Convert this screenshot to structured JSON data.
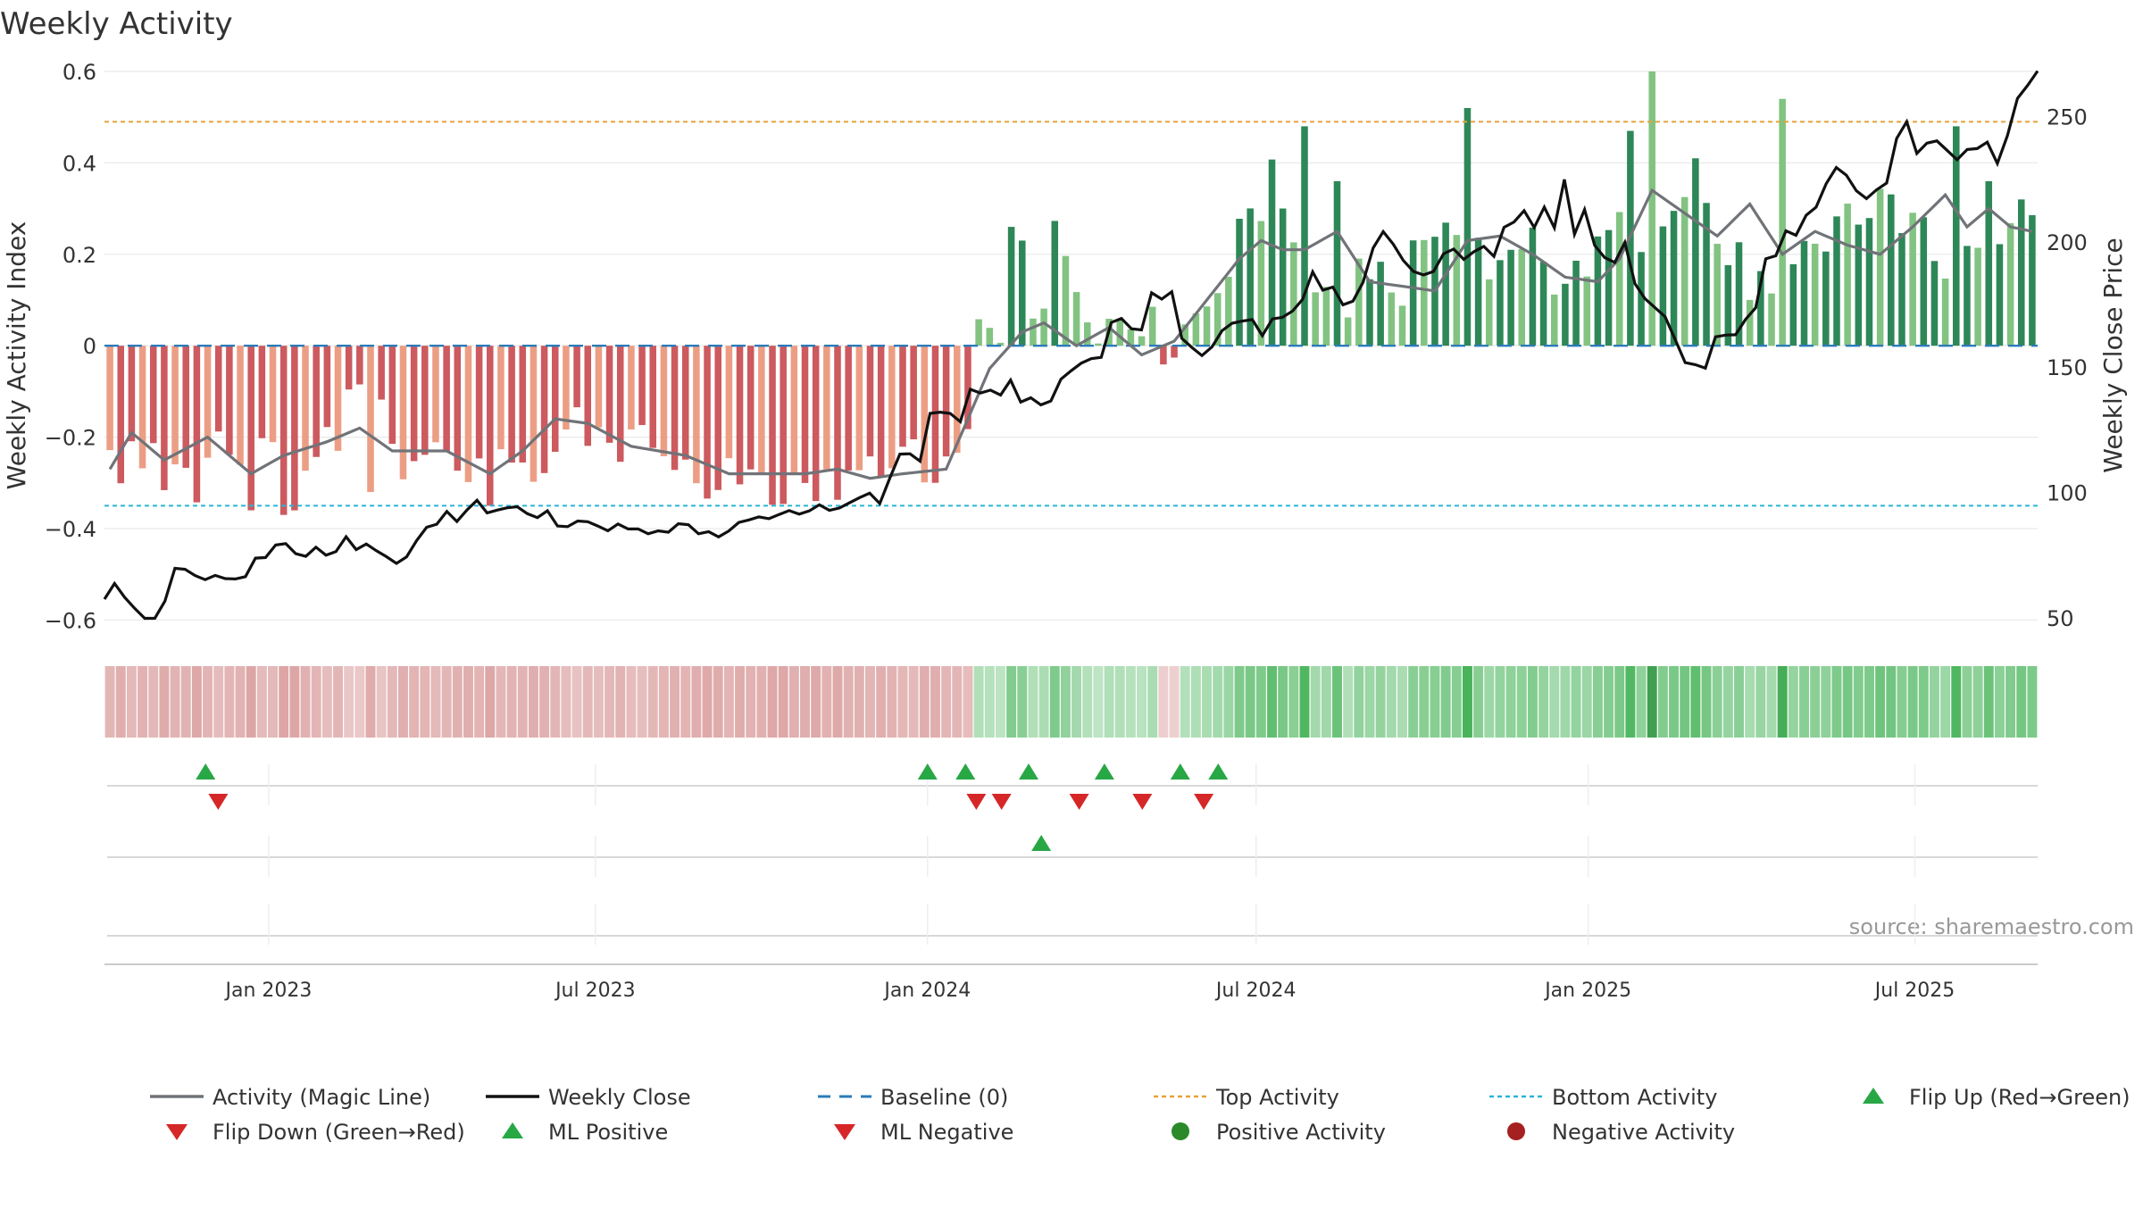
{
  "chart_data": {
    "type": "bar",
    "title": "Weekly Activity",
    "ylabel": "Weekly Activity Index",
    "y2label": "Weekly Close Price",
    "ylim": [
      -0.65,
      0.6
    ],
    "y2lim": [
      40,
      268
    ],
    "yticks": [
      "0.6",
      "0.4",
      "0.2",
      "0",
      "−0.2",
      "−0.4",
      "−0.6"
    ],
    "ytick_values": [
      0.6,
      0.4,
      0.2,
      0,
      -0.2,
      -0.4,
      -0.6
    ],
    "y2ticks": [
      "250",
      "200",
      "150",
      "100",
      "50"
    ],
    "y2tick_values": [
      250,
      200,
      150,
      100,
      50
    ],
    "x_start": "2022-10-02",
    "x_end": "2025-09-07",
    "xticks": [
      {
        "label": "Jan 2023",
        "date": "2023-01-01"
      },
      {
        "label": "Jul 2023",
        "date": "2023-07-01"
      },
      {
        "label": "Jan 2024",
        "date": "2024-01-01"
      },
      {
        "label": "Jul 2024",
        "date": "2024-07-01"
      },
      {
        "label": "Jan 2025",
        "date": "2025-01-01"
      },
      {
        "label": "Jul 2025",
        "date": "2025-07-01"
      }
    ],
    "top_activity": 0.49,
    "bottom_activity": -0.35,
    "baseline": 0,
    "activity_anchors": [
      [
        0,
        -0.28
      ],
      [
        3,
        -0.25
      ],
      [
        5,
        -0.27
      ],
      [
        8,
        -0.3
      ],
      [
        10,
        -0.21
      ],
      [
        13,
        -0.2
      ],
      [
        16,
        -0.3
      ],
      [
        18,
        -0.33
      ],
      [
        22,
        -0.12
      ],
      [
        25,
        -0.16
      ],
      [
        27,
        -0.25
      ],
      [
        31,
        -0.22
      ],
      [
        35,
        -0.28
      ],
      [
        39,
        -0.3
      ],
      [
        42,
        -0.2
      ],
      [
        45,
        -0.15
      ],
      [
        48,
        -0.22
      ],
      [
        52,
        -0.27
      ],
      [
        56,
        -0.29
      ],
      [
        60,
        -0.31
      ],
      [
        64,
        -0.3
      ],
      [
        67,
        -0.28
      ],
      [
        70,
        -0.27
      ],
      [
        74,
        -0.25
      ],
      [
        77,
        -0.3
      ],
      [
        79,
        -0.2
      ],
      [
        80,
        0.02
      ],
      [
        82,
        0.06
      ],
      [
        84,
        -0.05
      ],
      [
        87,
        0.22
      ],
      [
        90,
        0.05
      ],
      [
        92,
        0.02
      ],
      [
        95,
        0.08
      ],
      [
        98,
        -0.03
      ],
      [
        101,
        0.05
      ],
      [
        103,
        0.15
      ],
      [
        105,
        0.3
      ],
      [
        107,
        0.35
      ],
      [
        110,
        0.12
      ],
      [
        113,
        0.05
      ],
      [
        116,
        0.2
      ],
      [
        119,
        0.14
      ],
      [
        122,
        0.25
      ],
      [
        125,
        0.2
      ],
      [
        128,
        0.15
      ],
      [
        131,
        0.22
      ],
      [
        134,
        0.12
      ],
      [
        137,
        0.18
      ],
      [
        140,
        0.3
      ],
      [
        142,
        0.18
      ],
      [
        145,
        0.32
      ],
      [
        148,
        0.22
      ],
      [
        151,
        0.15
      ],
      [
        154,
        0.18
      ],
      [
        157,
        0.2
      ],
      [
        160,
        0.28
      ],
      [
        163,
        0.35
      ],
      [
        166,
        0.28
      ],
      [
        169,
        0.18
      ],
      [
        171,
        0.22
      ],
      [
        173,
        0.15
      ],
      [
        175,
        0.25
      ],
      [
        177,
        0.3
      ]
    ],
    "activity_spikes": [
      [
        13,
        -0.36
      ],
      [
        16,
        -0.37
      ],
      [
        24,
        -0.32
      ],
      [
        35,
        -0.35
      ],
      [
        83,
        0.26
      ],
      [
        84,
        0.23
      ],
      [
        110,
        0.48
      ],
      [
        113,
        0.36
      ],
      [
        125,
        0.52
      ],
      [
        140,
        0.47
      ],
      [
        142,
        0.6
      ],
      [
        146,
        0.41
      ],
      [
        154,
        0.54
      ],
      [
        170,
        0.48
      ],
      [
        173,
        0.36
      ],
      [
        176,
        0.32
      ]
    ],
    "magic_line_anchors": [
      [
        0,
        -0.27
      ],
      [
        2,
        -0.19
      ],
      [
        5,
        -0.25
      ],
      [
        9,
        -0.2
      ],
      [
        13,
        -0.28
      ],
      [
        16,
        -0.24
      ],
      [
        20,
        -0.21
      ],
      [
        23,
        -0.18
      ],
      [
        26,
        -0.23
      ],
      [
        31,
        -0.23
      ],
      [
        35,
        -0.28
      ],
      [
        38,
        -0.23
      ],
      [
        41,
        -0.16
      ],
      [
        44,
        -0.17
      ],
      [
        48,
        -0.22
      ],
      [
        53,
        -0.24
      ],
      [
        57,
        -0.28
      ],
      [
        61,
        -0.28
      ],
      [
        64,
        -0.28
      ],
      [
        67,
        -0.27
      ],
      [
        70,
        -0.29
      ],
      [
        73,
        -0.28
      ],
      [
        77,
        -0.27
      ],
      [
        81,
        -0.05
      ],
      [
        84,
        0.03
      ],
      [
        86,
        0.05
      ],
      [
        89,
        0.0
      ],
      [
        92,
        0.04
      ],
      [
        95,
        -0.02
      ],
      [
        98,
        0.01
      ],
      [
        101,
        0.1
      ],
      [
        104,
        0.19
      ],
      [
        106,
        0.23
      ],
      [
        108,
        0.21
      ],
      [
        110,
        0.21
      ],
      [
        113,
        0.25
      ],
      [
        116,
        0.14
      ],
      [
        119,
        0.13
      ],
      [
        122,
        0.12
      ],
      [
        125,
        0.23
      ],
      [
        128,
        0.24
      ],
      [
        131,
        0.2
      ],
      [
        134,
        0.15
      ],
      [
        137,
        0.14
      ],
      [
        139,
        0.19
      ],
      [
        142,
        0.34
      ],
      [
        145,
        0.29
      ],
      [
        148,
        0.24
      ],
      [
        151,
        0.31
      ],
      [
        154,
        0.2
      ],
      [
        157,
        0.25
      ],
      [
        160,
        0.22
      ],
      [
        163,
        0.2
      ],
      [
        166,
        0.26
      ],
      [
        169,
        0.33
      ],
      [
        171,
        0.26
      ],
      [
        173,
        0.3
      ],
      [
        175,
        0.26
      ],
      [
        177,
        0.25
      ]
    ],
    "close_anchors": [
      [
        0,
        57
      ],
      [
        1,
        63
      ],
      [
        2,
        56
      ],
      [
        4,
        51
      ],
      [
        5,
        50
      ],
      [
        7,
        68
      ],
      [
        9,
        69
      ],
      [
        11,
        65
      ],
      [
        12,
        64
      ],
      [
        14,
        64
      ],
      [
        15,
        73
      ],
      [
        16,
        74
      ],
      [
        17,
        77
      ],
      [
        18,
        79
      ],
      [
        19,
        76
      ],
      [
        21,
        76
      ],
      [
        23,
        77
      ],
      [
        24,
        80
      ],
      [
        26,
        77
      ],
      [
        28,
        74
      ],
      [
        30,
        74
      ],
      [
        32,
        84
      ],
      [
        34,
        90
      ],
      [
        35,
        89
      ],
      [
        37,
        96
      ],
      [
        39,
        92
      ],
      [
        41,
        96
      ],
      [
        42,
        91
      ],
      [
        44,
        93
      ],
      [
        45,
        88
      ],
      [
        47,
        87
      ],
      [
        49,
        89
      ],
      [
        51,
        85
      ],
      [
        52,
        86
      ],
      [
        54,
        84
      ],
      [
        55,
        83
      ],
      [
        57,
        87
      ],
      [
        58,
        88
      ],
      [
        60,
        83
      ],
      [
        62,
        85
      ],
      [
        64,
        88
      ],
      [
        65,
        91
      ],
      [
        67,
        90
      ],
      [
        69,
        93
      ],
      [
        71,
        96
      ],
      [
        72,
        92
      ],
      [
        74,
        96
      ],
      [
        76,
        98
      ],
      [
        77,
        96
      ],
      [
        79,
        113
      ],
      [
        80,
        115
      ],
      [
        81,
        113
      ],
      [
        82,
        130
      ],
      [
        84,
        130
      ],
      [
        85,
        130
      ],
      [
        86,
        140
      ],
      [
        88,
        139
      ],
      [
        89,
        141
      ],
      [
        90,
        147
      ],
      [
        91,
        135
      ],
      [
        92,
        138
      ],
      [
        93,
        137
      ],
      [
        94,
        139
      ],
      [
        95,
        143
      ],
      [
        97,
        152
      ],
      [
        99,
        156
      ],
      [
        100,
        170
      ],
      [
        102,
        164
      ],
      [
        103,
        167
      ],
      [
        104,
        180
      ],
      [
        105,
        175
      ],
      [
        106,
        178
      ],
      [
        107,
        164
      ],
      [
        108,
        156
      ],
      [
        109,
        155
      ],
      [
        111,
        163
      ],
      [
        112,
        168
      ],
      [
        113,
        167
      ],
      [
        114,
        171
      ],
      [
        115,
        165
      ],
      [
        116,
        168
      ],
      [
        118,
        172
      ],
      [
        119,
        177
      ],
      [
        120,
        186
      ],
      [
        122,
        180
      ],
      [
        124,
        174
      ],
      [
        126,
        196
      ],
      [
        127,
        203
      ],
      [
        128,
        198
      ],
      [
        129,
        193
      ],
      [
        130,
        190
      ],
      [
        132,
        186
      ],
      [
        133,
        197
      ],
      [
        134,
        196
      ],
      [
        135,
        193
      ],
      [
        137,
        198
      ],
      [
        138,
        192
      ],
      [
        139,
        205
      ],
      [
        141,
        210
      ],
      [
        142,
        208
      ],
      [
        143,
        214
      ],
      [
        144,
        208
      ],
      [
        145,
        226
      ],
      [
        146,
        204
      ],
      [
        147,
        212
      ],
      [
        148,
        198
      ],
      [
        149,
        194
      ],
      [
        150,
        193
      ],
      [
        151,
        199
      ],
      [
        152,
        181
      ],
      [
        153,
        175
      ],
      [
        155,
        169
      ],
      [
        156,
        160
      ],
      [
        157,
        152
      ],
      [
        159,
        151
      ],
      [
        160,
        160
      ],
      [
        161,
        165
      ],
      [
        162,
        163
      ],
      [
        163,
        168
      ],
      [
        164,
        172
      ],
      [
        165,
        195
      ],
      [
        166,
        193
      ],
      [
        167,
        203
      ],
      [
        168,
        205
      ],
      [
        170,
        216
      ],
      [
        171,
        225
      ],
      [
        172,
        232
      ],
      [
        173,
        226
      ],
      [
        174,
        222
      ],
      [
        175,
        216
      ],
      [
        177,
        225
      ],
      [
        178,
        242
      ],
      [
        179,
        248
      ],
      [
        180,
        237
      ],
      [
        181,
        241
      ],
      [
        182,
        239
      ],
      [
        183,
        236
      ],
      [
        184,
        235
      ],
      [
        186,
        238
      ],
      [
        187,
        240
      ],
      [
        188,
        233
      ],
      [
        190,
        256
      ],
      [
        191,
        262
      ],
      [
        192,
        266
      ]
    ],
    "flip_up_dates": [
      "2022-11-27",
      "2024-01-01",
      "2024-01-22",
      "2024-02-26",
      "2024-04-08",
      "2024-05-20",
      "2024-06-10"
    ],
    "flip_down_dates": [
      "2022-12-04",
      "2024-01-28",
      "2024-02-11",
      "2024-03-25",
      "2024-04-29",
      "2024-06-02"
    ],
    "ml_positive_dates": [
      "2024-03-04"
    ],
    "legend": [
      {
        "label": "Activity (Magic Line)",
        "kind": "line",
        "color": "#707378"
      },
      {
        "label": "Weekly Close",
        "kind": "line",
        "color": "#111111"
      },
      {
        "label": "Baseline (0)",
        "kind": "dash",
        "color": "#2b7bb9"
      },
      {
        "label": "Top Activity",
        "kind": "dot",
        "color": "#e8a13a"
      },
      {
        "label": "Bottom Activity",
        "kind": "dot",
        "color": "#29b6d6"
      },
      {
        "label": "Flip Up (Red→Green)",
        "kind": "tri-up",
        "color": "#28a745"
      },
      {
        "label": "Flip Down (Green→Red)",
        "kind": "tri-down",
        "color": "#d62728"
      },
      {
        "label": "ML Positive",
        "kind": "tri-up",
        "color": "#28a745"
      },
      {
        "label": "ML Negative",
        "kind": "tri-down",
        "color": "#d62728"
      },
      {
        "label": "Positive Activity",
        "kind": "circle",
        "color": "#2a8a2a"
      },
      {
        "label": "Negative Activity",
        "kind": "circle",
        "color": "#a52020"
      }
    ],
    "source": "source: sharemaestro.com",
    "colors": {
      "pos_dark": "#2e8757",
      "pos_light": "#82c382",
      "neg_dark": "#cc5a5e",
      "neg_light": "#ec9e84",
      "magic_line": "#707378",
      "close_line": "#111111",
      "baseline": "#2b7bb9",
      "top_line": "#e8a13a",
      "bottom_line": "#29b6d6",
      "flip_up": "#28a745",
      "flip_down": "#d62728",
      "grid": "#e9e9e9",
      "axis_text": "#333333"
    }
  }
}
